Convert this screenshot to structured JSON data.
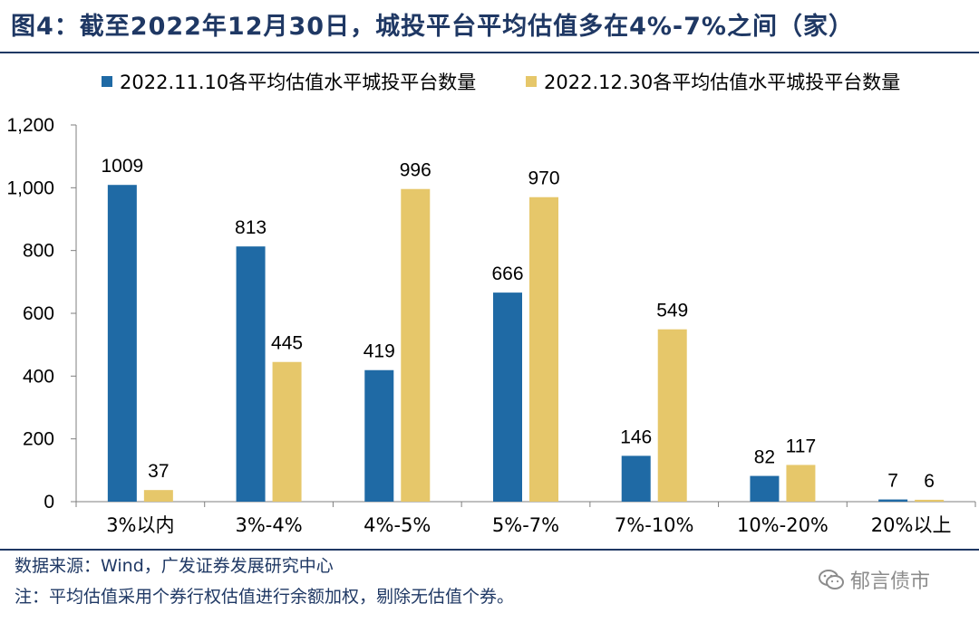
{
  "figure": {
    "title": "图4：截至2022年12月30日，城投平台平均估值多在4%-7%之间（家）",
    "source": "数据来源：Wind，广发证券发展研究中心",
    "note": "注：平均估值采用个券行权估值进行余额加权，剔除无估值个券。",
    "watermark": "郁言债市",
    "colors": {
      "title": "#1f3864",
      "series1": "#1f6aa5",
      "series2": "#e6c76a",
      "axis": "#7f7f7f"
    }
  },
  "chart_data": {
    "type": "bar",
    "title": "截至2022年12月30日，城投平台平均估值多在4%-7%之间（家）",
    "xlabel": "",
    "ylabel": "",
    "ylim": [
      0,
      1200
    ],
    "yticks": [
      0,
      200,
      400,
      600,
      800,
      1000,
      1200
    ],
    "ytick_labels": [
      "0",
      "200",
      "400",
      "600",
      "800",
      "1,000",
      "1,200"
    ],
    "categories": [
      "3%以内",
      "3%-4%",
      "4%-5%",
      "5%-7%",
      "7%-10%",
      "10%-20%",
      "20%以上"
    ],
    "series": [
      {
        "name": "2022.11.10各平均估值水平城投平台数量",
        "values": [
          1009,
          813,
          419,
          666,
          146,
          82,
          7
        ]
      },
      {
        "name": "2022.12.30各平均估值水平城投平台数量",
        "values": [
          37,
          445,
          996,
          970,
          549,
          117,
          6
        ]
      }
    ],
    "legend": "top",
    "grid": false
  }
}
